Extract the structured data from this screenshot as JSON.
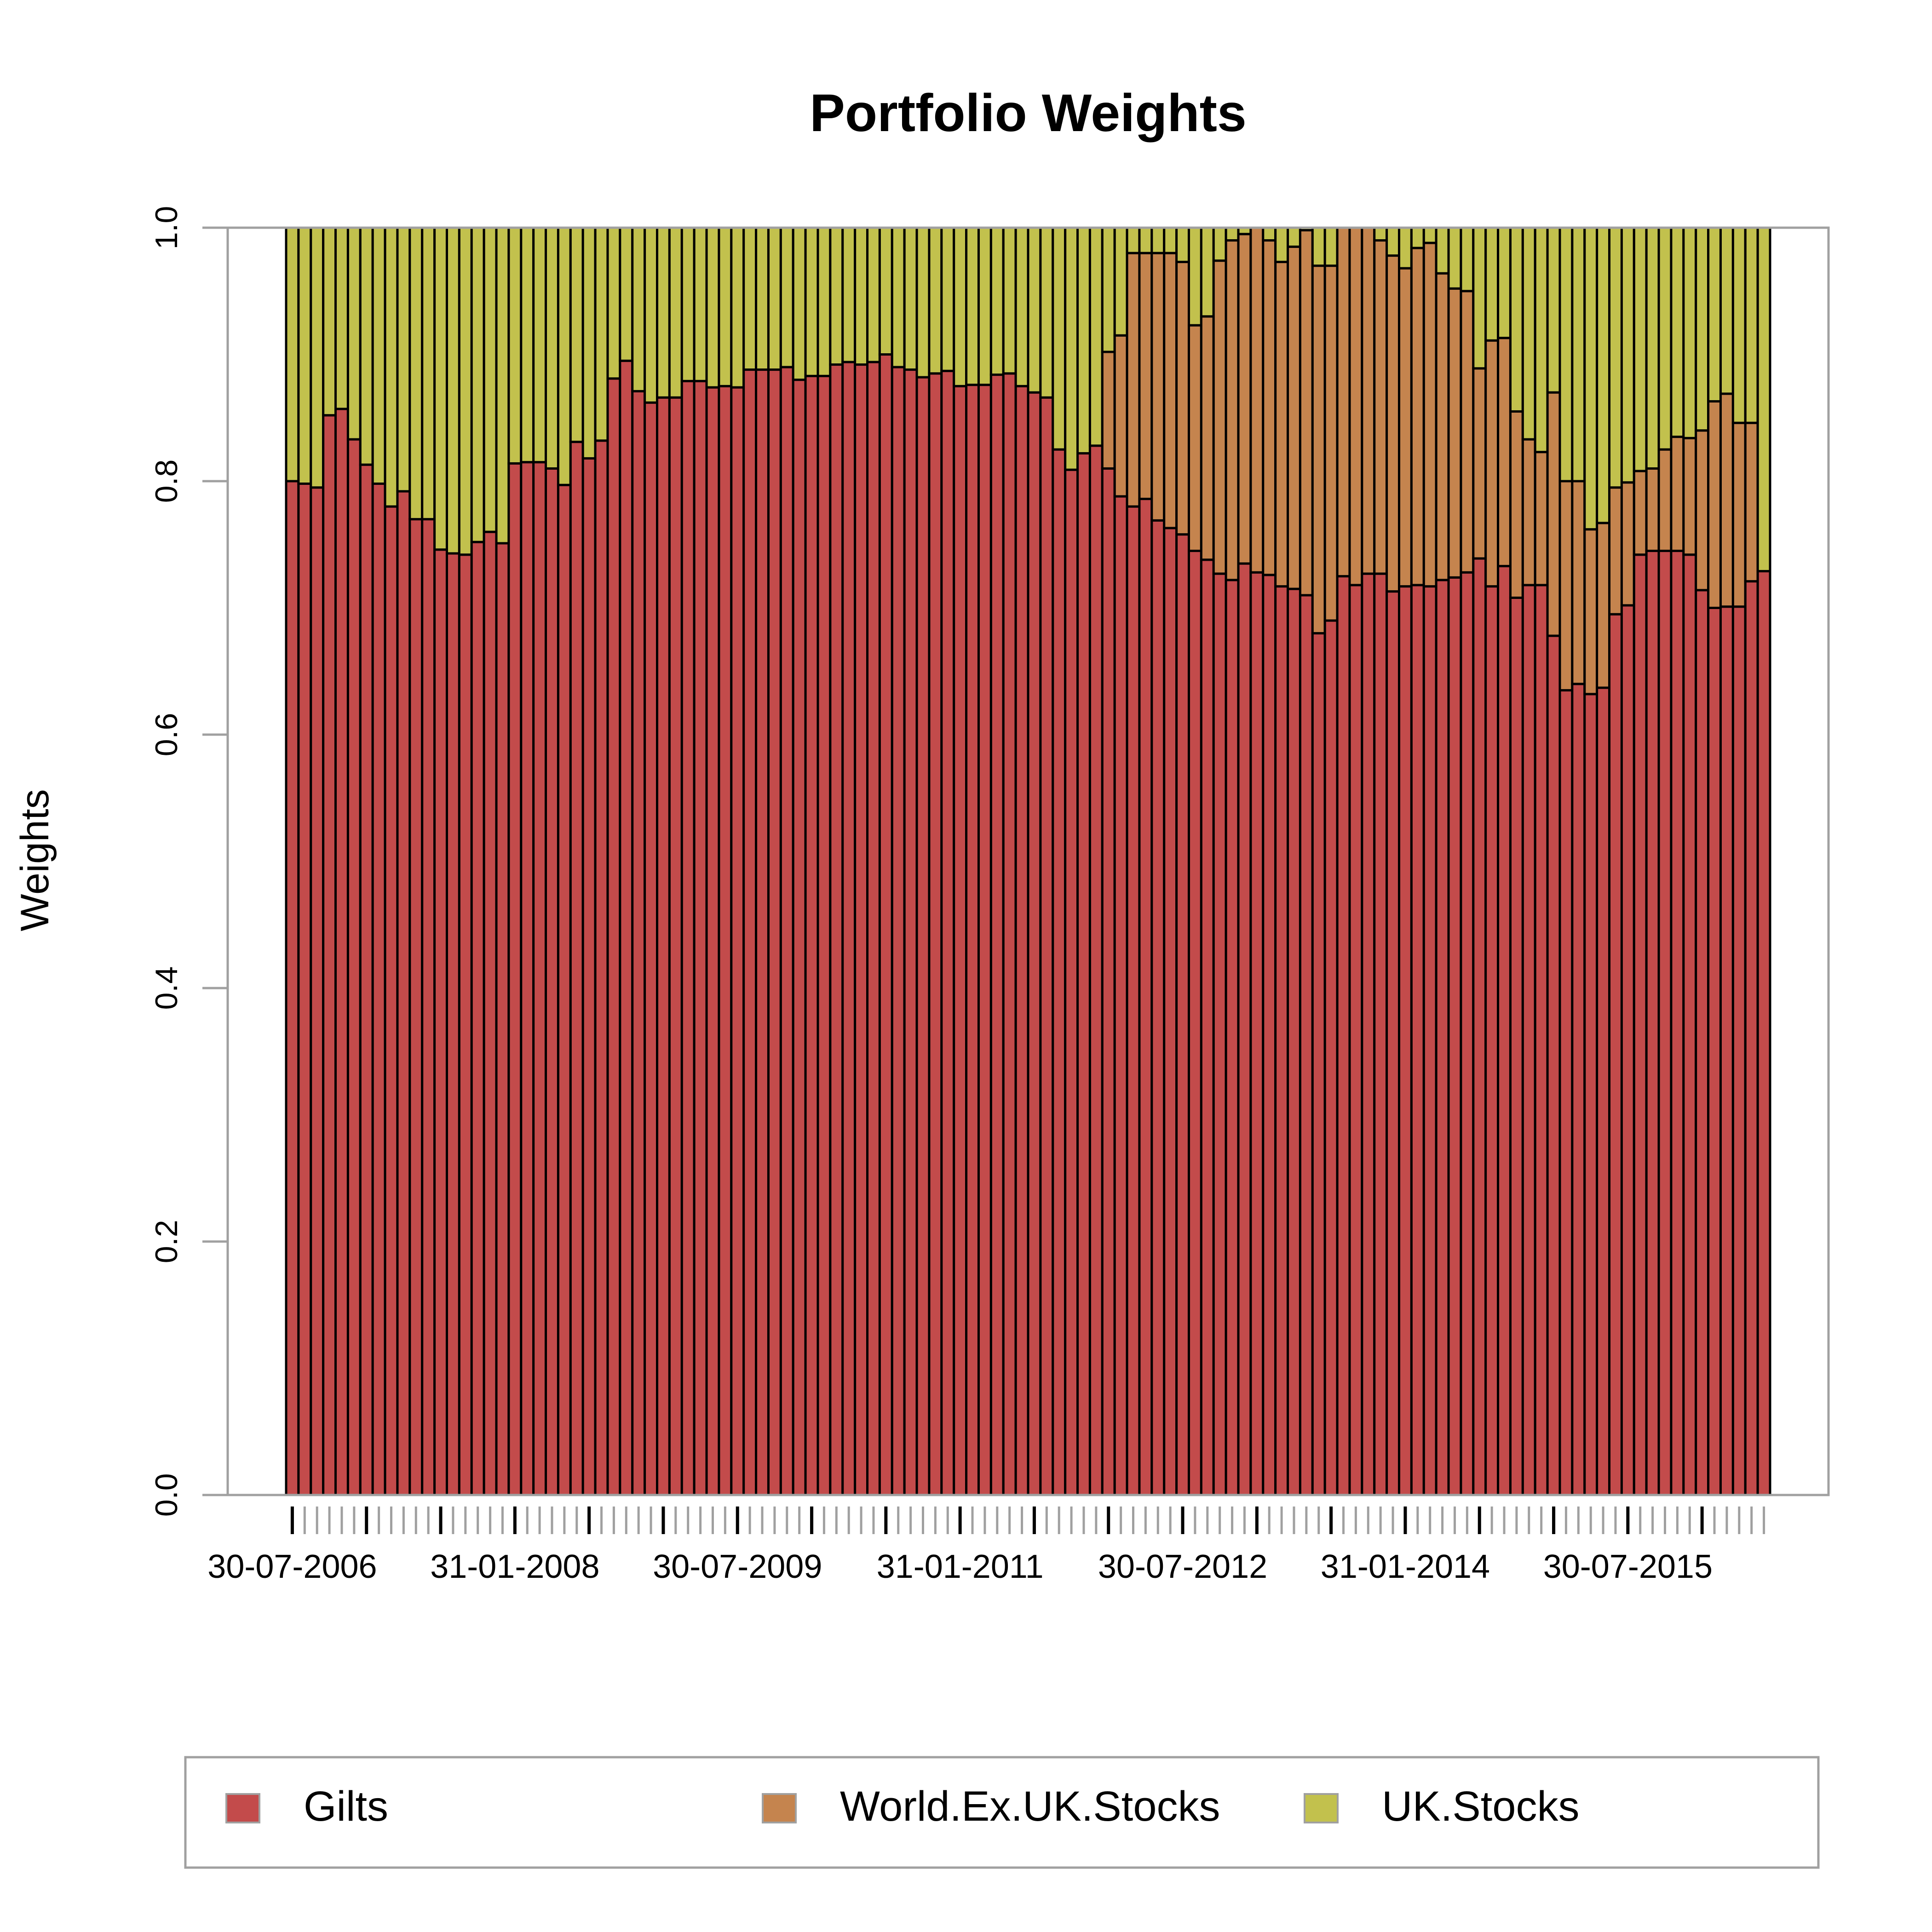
{
  "chart_data": {
    "type": "bar",
    "stacked": true,
    "title": "Portfolio Weights",
    "xlabel": "",
    "ylabel": "Weights",
    "ylim": [
      0,
      1
    ],
    "yticks": [
      0.0,
      0.2,
      0.4,
      0.6,
      0.8,
      1.0
    ],
    "ytick_labels": [
      "0.0",
      "0.2",
      "0.4",
      "0.6",
      "0.8",
      "1.0"
    ],
    "x_labels": [
      {
        "index": 0,
        "label": "30-07-2006"
      },
      {
        "index": 18,
        "label": "31-01-2008"
      },
      {
        "index": 36,
        "label": "30-07-2009"
      },
      {
        "index": 54,
        "label": "31-01-2011"
      },
      {
        "index": 72,
        "label": "30-07-2012"
      },
      {
        "index": 90,
        "label": "31-01-2014"
      },
      {
        "index": 108,
        "label": "30-07-2015"
      }
    ],
    "major_tick_every": 6,
    "legend_position": "bottom",
    "series": [
      {
        "name": "Gilts",
        "color": "#c34b4b",
        "values": [
          0.8,
          0.798,
          0.795,
          0.852,
          0.857,
          0.833,
          0.813,
          0.798,
          0.78,
          0.792,
          0.77,
          0.77,
          0.746,
          0.743,
          0.742,
          0.752,
          0.76,
          0.751,
          0.814,
          0.815,
          0.815,
          0.81,
          0.797,
          0.831,
          0.818,
          0.832,
          0.881,
          0.895,
          0.871,
          0.862,
          0.866,
          0.866,
          0.879,
          0.879,
          0.874,
          0.875,
          0.874,
          0.888,
          0.888,
          0.888,
          0.89,
          0.88,
          0.883,
          0.883,
          0.892,
          0.894,
          0.892,
          0.894,
          0.9,
          0.89,
          0.888,
          0.882,
          0.885,
          0.887,
          0.875,
          0.876,
          0.876,
          0.884,
          0.885,
          0.875,
          0.87,
          0.866,
          0.825,
          0.809,
          0.822,
          0.828,
          0.81,
          0.788,
          0.78,
          0.786,
          0.769,
          0.763,
          0.758,
          0.745,
          0.738,
          0.727,
          0.722,
          0.735,
          0.728,
          0.726,
          0.717,
          0.715,
          0.71,
          0.68,
          0.69,
          0.725,
          0.718,
          0.727,
          0.727,
          0.713,
          0.717,
          0.718,
          0.717,
          0.722,
          0.724,
          0.728,
          0.739,
          0.717,
          0.733,
          0.708,
          0.718,
          0.718,
          0.678,
          0.635,
          0.64,
          0.632,
          0.637,
          0.695,
          0.702,
          0.742,
          0.745,
          0.745,
          0.745,
          0.742,
          0.714,
          0.7,
          0.701,
          0.701,
          0.721,
          0.729
        ]
      },
      {
        "name": "World.Ex.UK.Stocks",
        "color": "#c5844e",
        "values": [
          0,
          0,
          0,
          0,
          0,
          0,
          0,
          0,
          0,
          0,
          0,
          0,
          0,
          0,
          0,
          0,
          0,
          0,
          0,
          0,
          0,
          0,
          0,
          0,
          0,
          0,
          0,
          0,
          0,
          0,
          0,
          0,
          0,
          0,
          0,
          0,
          0,
          0,
          0,
          0,
          0,
          0,
          0,
          0,
          0,
          0,
          0,
          0,
          0,
          0,
          0,
          0,
          0,
          0,
          0,
          0,
          0,
          0,
          0,
          0,
          0,
          0,
          0,
          0,
          0,
          0,
          0.092,
          0.127,
          0.2,
          0.194,
          0.211,
          0.217,
          0.215,
          0.178,
          0.192,
          0.247,
          0.268,
          0.26,
          0.272,
          0.264,
          0.256,
          0.27,
          0.288,
          0.29,
          0.28,
          0.275,
          0.282,
          0.273,
          0.263,
          0.265,
          0.251,
          0.266,
          0.271,
          0.242,
          0.228,
          0.222,
          0.15,
          0.194,
          0.18,
          0.147,
          0.115,
          0.105,
          0.192,
          0.165,
          0.16,
          0.13,
          0.13,
          0.1,
          0.097,
          0.066,
          0.065,
          0.08,
          0.09,
          0.092,
          0.126,
          0.163,
          0.168,
          0.145,
          0.125,
          0.0
        ]
      },
      {
        "name": "UK.Stocks",
        "color": "#c2c14d",
        "values": [
          0.2,
          0.202,
          0.205,
          0.148,
          0.143,
          0.167,
          0.187,
          0.202,
          0.22,
          0.208,
          0.23,
          0.23,
          0.254,
          0.257,
          0.258,
          0.248,
          0.24,
          0.249,
          0.186,
          0.185,
          0.185,
          0.19,
          0.203,
          0.169,
          0.182,
          0.168,
          0.119,
          0.105,
          0.129,
          0.138,
          0.134,
          0.134,
          0.121,
          0.121,
          0.126,
          0.125,
          0.126,
          0.112,
          0.112,
          0.112,
          0.11,
          0.12,
          0.117,
          0.117,
          0.108,
          0.106,
          0.108,
          0.106,
          0.1,
          0.11,
          0.112,
          0.118,
          0.115,
          0.113,
          0.125,
          0.124,
          0.124,
          0.116,
          0.115,
          0.125,
          0.13,
          0.134,
          0.175,
          0.191,
          0.178,
          0.172,
          0.098,
          0.085,
          0.02,
          0.02,
          0.02,
          0.02,
          0.027,
          0.077,
          0.07,
          0.026,
          0.01,
          0.005,
          0.0,
          0.01,
          0.027,
          0.015,
          0.002,
          0.03,
          0.03,
          0.0,
          0.0,
          0.0,
          0.01,
          0.022,
          0.032,
          0.016,
          0.012,
          0.036,
          0.048,
          0.05,
          0.111,
          0.089,
          0.087,
          0.145,
          0.167,
          0.177,
          0.13,
          0.2,
          0.2,
          0.238,
          0.233,
          0.205,
          0.201,
          0.192,
          0.19,
          0.175,
          0.165,
          0.166,
          0.16,
          0.137,
          0.131,
          0.154,
          0.154,
          0.271
        ]
      }
    ]
  }
}
